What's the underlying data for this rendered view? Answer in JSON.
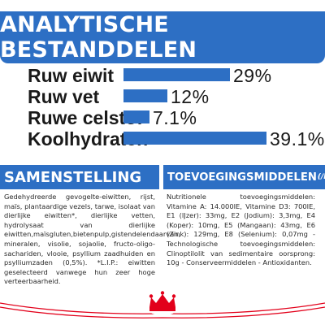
{
  "banner": {
    "title": "ANALYTISCHE BESTANDDELEN"
  },
  "analysis": [
    {
      "label": "Ruw eiwit",
      "value": "29%",
      "fraction": 0.29
    },
    {
      "label": "Ruw vet",
      "value": "12%",
      "fraction": 0.12
    },
    {
      "label": "Ruwe celstof",
      "value": "7.1%",
      "fraction": 0.071
    },
    {
      "label": "Koolhydraten",
      "value": "39.1%",
      "fraction": 0.391
    }
  ],
  "composition": {
    "title": "SAMENSTELLING",
    "text": "Gedehydreerde gevogelte-eiwitten, rijst, maïs, plantaardige vezels, tarwe, isolaat van dierlijke eiwitten*, dierlijke vetten, hydrolysaat van dierlijke eiwitten,maïsgluten,bietenpulp,gistendelendaarvan, mineralen, visolie, sojaolie, fructo-oligo-sachariden, vlooie, psyllium zaadhuiden en psylliumzaden (0,5%). *L.I.P.: eiwitten geselecteerd vanwege hun zeer hoge verteerbaarheid."
  },
  "additives": {
    "title": "TOEVOEGINGSMIDDELEN",
    "unit": "(/kg)",
    "text": "Nutritionele toevoegingsmiddelen: Vitamine A: 14.000IE, Vitamine D3: 700IE, E1 (IJzer): 33mg, E2 (Jodium): 3,3mg, E4 (Koper): 10mg, E5 (Mangaan): 43mg, E6 (Zink): 129mg, E8 (Selenium): 0,07mg - Technologische toevoegingsmiddelen: Clinoptilolit van sedimentaire oorsprong: 10g - Conserveermiddelen - Antioxidanten."
  },
  "colors": {
    "brand_blue": "#2d6fc4",
    "logo_red": "#e2001a"
  },
  "logo": {
    "icon": "royal-canin-crown-logo-icon"
  }
}
